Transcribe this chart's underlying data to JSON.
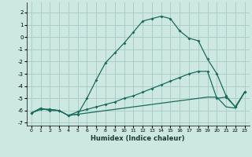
{
  "xlabel": "Humidex (Indice chaleur)",
  "background_color": "#cce8e0",
  "grid_color": "#aacfc8",
  "line_color": "#1a6b5e",
  "xlim": [
    -0.5,
    23.5
  ],
  "ylim": [
    -7.2,
    2.8
  ],
  "xtick_labels": [
    "0",
    "1",
    "2",
    "3",
    "4",
    "5",
    "6",
    "7",
    "8",
    "9",
    "10",
    "11",
    "12",
    "13",
    "14",
    "15",
    "16",
    "17",
    "18",
    "19",
    "20",
    "21",
    "22",
    "23"
  ],
  "xtick_vals": [
    0,
    1,
    2,
    3,
    4,
    5,
    6,
    7,
    8,
    9,
    10,
    11,
    12,
    13,
    14,
    15,
    16,
    17,
    18,
    19,
    20,
    21,
    22,
    23
  ],
  "ytick_vals": [
    -7,
    -6,
    -5,
    -4,
    -3,
    -2,
    -1,
    0,
    1,
    2
  ],
  "line1_x": [
    0,
    1,
    2,
    3,
    4,
    5,
    6,
    7,
    8,
    9,
    10,
    11,
    12,
    13,
    14,
    15,
    16,
    17,
    18,
    19,
    20,
    21,
    22,
    23
  ],
  "line1_y": [
    -6.2,
    -5.8,
    -6.0,
    -6.0,
    -6.4,
    -6.3,
    -5.0,
    -3.5,
    -2.1,
    -1.3,
    -0.5,
    0.4,
    1.3,
    1.5,
    1.7,
    1.5,
    0.5,
    -0.1,
    -0.3,
    -1.8,
    -3.0,
    -4.8,
    -5.7,
    -4.5
  ],
  "line2_x": [
    0,
    1,
    2,
    3,
    4,
    5,
    6,
    7,
    8,
    9,
    10,
    11,
    12,
    13,
    14,
    15,
    16,
    17,
    18,
    19,
    20,
    21,
    22,
    23
  ],
  "line2_y": [
    -6.2,
    -5.9,
    -5.9,
    -6.0,
    -6.4,
    -6.1,
    -5.9,
    -5.7,
    -5.5,
    -5.3,
    -5.0,
    -4.8,
    -4.5,
    -4.2,
    -3.9,
    -3.6,
    -3.3,
    -3.0,
    -2.8,
    -2.8,
    -5.0,
    -4.9,
    -5.7,
    -4.5
  ],
  "line3_x": [
    0,
    1,
    2,
    3,
    4,
    5,
    6,
    7,
    8,
    9,
    10,
    11,
    12,
    13,
    14,
    15,
    16,
    17,
    18,
    19,
    20,
    21,
    22,
    23
  ],
  "line3_y": [
    -6.2,
    -5.9,
    -5.9,
    -6.0,
    -6.4,
    -6.3,
    -6.2,
    -6.1,
    -6.0,
    -5.9,
    -5.8,
    -5.7,
    -5.6,
    -5.5,
    -5.4,
    -5.3,
    -5.2,
    -5.1,
    -5.0,
    -4.9,
    -4.9,
    -5.7,
    -5.8,
    -4.5
  ]
}
